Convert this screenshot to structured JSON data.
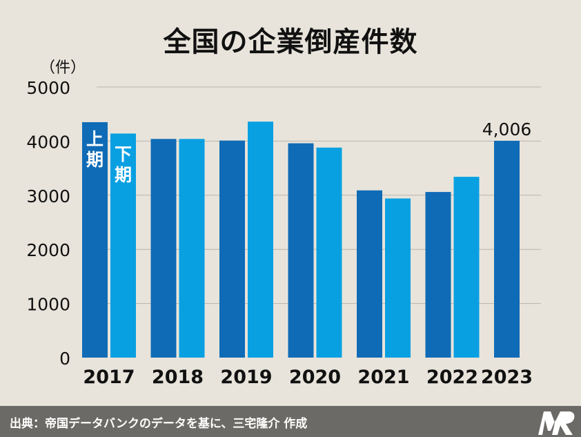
{
  "title": "全国の企業倒産件数",
  "unit_label": "（件）",
  "footer": {
    "source": "出典：帝国データバンクのデータを基に、三宅隆介 作成"
  },
  "colors": {
    "first_half": "#0f6bb6",
    "second_half": "#09a0e2",
    "background": "#e8e4db",
    "grid": "#b8b4ac",
    "footer": "#6c6a66"
  },
  "chart_data": {
    "type": "bar",
    "title": "全国の企業倒産件数",
    "ylabel": "（件）",
    "categories": [
      "2017",
      "2018",
      "2019",
      "2020",
      "2021",
      "2022",
      "2023"
    ],
    "ylim": [
      0,
      5000
    ],
    "yticks": [
      0,
      1000,
      2000,
      3000,
      4000,
      5000
    ],
    "grid": true,
    "series": [
      {
        "name": "上期",
        "values": [
          4350,
          4040,
          4010,
          3960,
          3090,
          3060,
          4006
        ]
      },
      {
        "name": "下期",
        "values": [
          4140,
          4040,
          4360,
          3880,
          2940,
          3340,
          null
        ]
      }
    ],
    "annotations": [
      {
        "category": "2023",
        "series": "上期",
        "text": "4,006"
      }
    ]
  }
}
